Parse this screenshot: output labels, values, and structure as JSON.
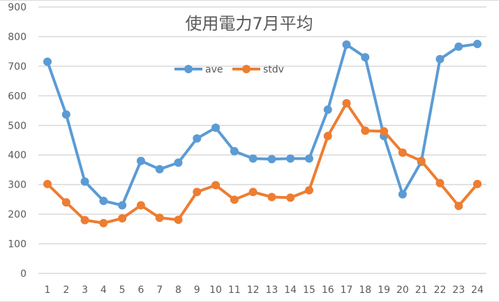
{
  "chart_data": {
    "type": "line",
    "title": "使用電力7月平均",
    "xlabel": "",
    "ylabel": "",
    "ylim": [
      0,
      900
    ],
    "yticks": [
      0,
      100,
      200,
      300,
      400,
      500,
      600,
      700,
      800,
      900
    ],
    "grid": true,
    "legend_position": "top",
    "categories": [
      "1",
      "2",
      "3",
      "4",
      "5",
      "6",
      "7",
      "8",
      "9",
      "10",
      "11",
      "12",
      "13",
      "14",
      "15",
      "16",
      "17",
      "18",
      "19",
      "20",
      "21",
      "22",
      "23",
      "24"
    ],
    "series": [
      {
        "name": "ave",
        "color": "#5B9BD5",
        "values": [
          715,
          537,
          310,
          245,
          230,
          380,
          352,
          374,
          456,
          492,
          413,
          388,
          386,
          388,
          388,
          553,
          773,
          730,
          464,
          267,
          377,
          724,
          766,
          775
        ]
      },
      {
        "name": "stdv",
        "color": "#ED7D31",
        "values": [
          302,
          240,
          180,
          170,
          186,
          230,
          188,
          181,
          275,
          298,
          249,
          275,
          258,
          256,
          281,
          464,
          575,
          482,
          480,
          408,
          380,
          305,
          228,
          302
        ]
      }
    ]
  }
}
